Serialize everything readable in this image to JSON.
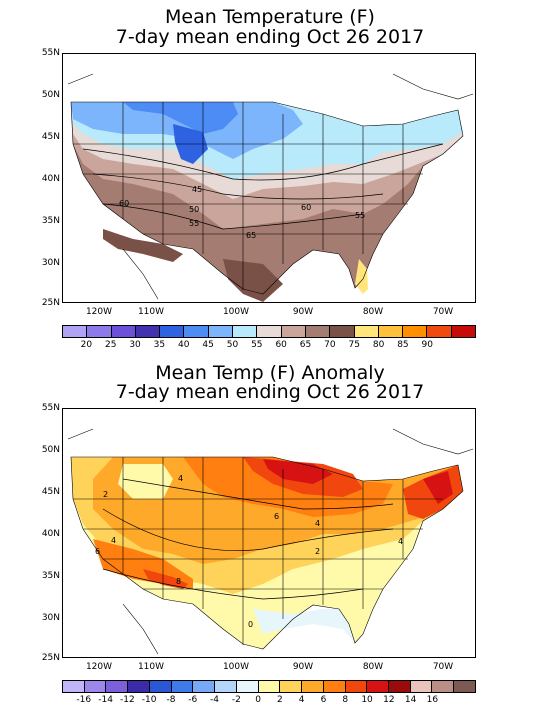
{
  "panels": [
    {
      "title_line1": "Mean Temperature (F)",
      "title_line2": "7-day mean ending Oct 26 2017",
      "lat_labels": [
        "55N",
        "50N",
        "45N",
        "40N",
        "35N",
        "30N",
        "25N"
      ],
      "lon_labels": [
        "120W",
        "110W",
        "100W",
        "90W",
        "80W",
        "70W"
      ],
      "contour_labels": [
        "45",
        "50",
        "55",
        "60",
        "60",
        "65",
        "55"
      ],
      "colorbar": {
        "colors": [
          "#b0a2f4",
          "#8e79ea",
          "#6d50d9",
          "#4232b0",
          "#2e62e0",
          "#4e8cf5",
          "#7cb5fb",
          "#b8eafb",
          "#e8dad6",
          "#caa59b",
          "#a57c72",
          "#7a5147",
          "#ffe57a",
          "#ffc13b",
          "#ff8f00",
          "#f04a10",
          "#c70a0a"
        ],
        "labels": [
          "20",
          "25",
          "30",
          "35",
          "40",
          "45",
          "50",
          "55",
          "60",
          "65",
          "70",
          "75",
          "80",
          "85",
          "90"
        ]
      }
    },
    {
      "title_line1": "Mean Temp (F) Anomaly",
      "title_line2": "7-day mean ending Oct 26 2017",
      "lat_labels": [
        "55N",
        "50N",
        "45N",
        "40N",
        "35N",
        "30N",
        "25N"
      ],
      "lon_labels": [
        "120W",
        "110W",
        "100W",
        "90W",
        "80W",
        "70W"
      ],
      "contour_labels": [
        "4",
        "6",
        "4",
        "2",
        "8",
        "6",
        "2",
        "4",
        "0",
        "4"
      ],
      "colorbar": {
        "colors": [
          "#c2b4f8",
          "#9d87ea",
          "#7b5fdb",
          "#3c2ba6",
          "#2a58d4",
          "#3e7ae8",
          "#78a9f4",
          "#b3d6f8",
          "#e6f6fb",
          "#fffaaa",
          "#ffd35a",
          "#ffa92a",
          "#ff7f10",
          "#f1460e",
          "#d71212",
          "#9a0b0b",
          "#eac4ba",
          "#b98e86",
          "#7a5a52"
        ],
        "labels": [
          "-16",
          "-14",
          "-12",
          "-10",
          "-8",
          "-6",
          "-4",
          "-2",
          "0",
          "2",
          "4",
          "6",
          "8",
          "10",
          "12",
          "14",
          "16"
        ]
      }
    }
  ]
}
